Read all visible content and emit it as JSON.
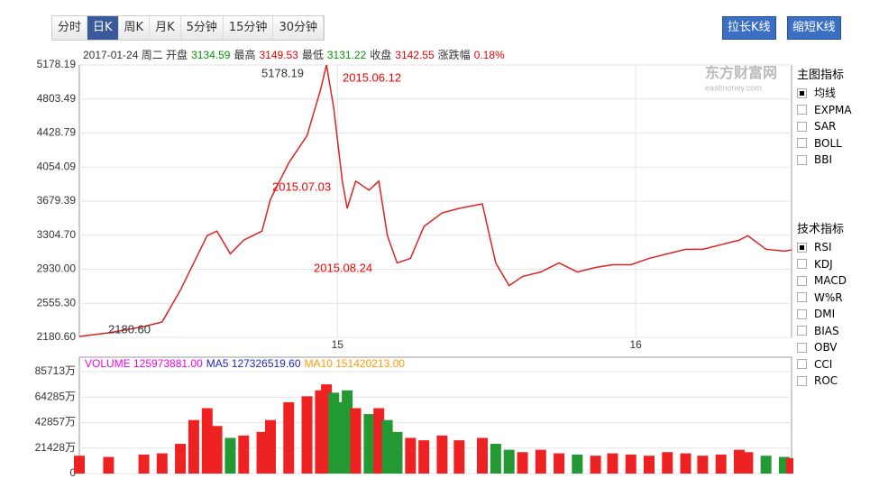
{
  "toolbar": {
    "tabs": [
      "分时",
      "日K",
      "周K",
      "月K",
      "5分钟",
      "15分钟",
      "30分钟"
    ],
    "active": 1
  },
  "buttons": [
    "拉长K线",
    "缩短K线"
  ],
  "watermark": {
    "brand": "东方财富网",
    "site": "eastmoney.com"
  },
  "info": [
    {
      "text": "2017-01-24 周二 开盘",
      "color": "#333"
    },
    {
      "text": "3134.59",
      "color": "#090"
    },
    {
      "text": "最高",
      "color": "#333"
    },
    {
      "text": "3149.53",
      "color": "#e00"
    },
    {
      "text": "最低",
      "color": "#333"
    },
    {
      "text": "3131.22",
      "color": "#090"
    },
    {
      "text": "收盘",
      "color": "#333"
    },
    {
      "text": "3142.55",
      "color": "#e00"
    },
    {
      "text": "涨跌幅",
      "color": "#333"
    },
    {
      "text": "0.18%",
      "color": "#e00"
    }
  ],
  "indicators": {
    "main": {
      "title": "主图指标",
      "items": [
        "均线",
        "EXPMA",
        "SAR",
        "BOLL",
        "BBI"
      ],
      "checked": 0
    },
    "tech": {
      "title": "技术指标",
      "items": [
        "RSI",
        "KDJ",
        "MACD",
        "W%R",
        "DMI",
        "BIAS",
        "OBV",
        "CCI",
        "ROC"
      ],
      "checked": 0
    }
  },
  "chart_data": [
    {
      "type": "line",
      "color": "#d22",
      "x": [
        0,
        24,
        53,
        68,
        83,
        94,
        105,
        113,
        124,
        135,
        150,
        157,
        172,
        187,
        198,
        203,
        209,
        216,
        220,
        227,
        238,
        246,
        253,
        261,
        272,
        283,
        298,
        312,
        331,
        342,
        353,
        364,
        379,
        394,
        409,
        424,
        438,
        453,
        468,
        483,
        498,
        512,
        527,
        542,
        549,
        564,
        579,
        585
      ],
      "values": [
        2190,
        2230,
        2300,
        2350,
        2700,
        3000,
        3300,
        3350,
        3100,
        3250,
        3350,
        3700,
        4100,
        4400,
        4900,
        5178.19,
        4700,
        3900,
        3600,
        3900,
        3800,
        3900,
        3300,
        3000,
        3050,
        3400,
        3550,
        3600,
        3650,
        3000,
        2750,
        2850,
        2900,
        3000,
        2900,
        2950,
        2980,
        2980,
        3050,
        3100,
        3150,
        3150,
        3200,
        3250,
        3300,
        3150,
        3130,
        3142.55
      ],
      "xlim": [
        0,
        585
      ],
      "xticks": [
        {
          "value": 212,
          "label": "15"
        },
        {
          "value": 457,
          "label": "16"
        }
      ],
      "ylim": [
        2180.6,
        5178.19
      ],
      "yticks": [
        {
          "value": 2180.6,
          "label": "2180.60"
        },
        {
          "value": 2555.3,
          "label": "2555.30"
        },
        {
          "value": 2930,
          "label": "2930.00"
        },
        {
          "value": 3304.7,
          "label": "3304.70"
        },
        {
          "value": 3679.39,
          "label": "3679.39"
        },
        {
          "value": 4054.09,
          "label": "4054.09"
        },
        {
          "value": 4428.79,
          "label": "4428.79"
        },
        {
          "value": 4803.49,
          "label": "4803.49"
        },
        {
          "value": 5178.19,
          "label": "5178.19"
        }
      ],
      "grid": true,
      "annotations": [
        "5178.19",
        "2015.06.12",
        "2015.07.03",
        "2015.08.24",
        "2180.60"
      ]
    },
    {
      "type": "bar",
      "x": [
        0,
        24,
        53,
        68,
        83,
        94,
        105,
        113,
        124,
        135,
        150,
        157,
        172,
        187,
        198,
        203,
        209,
        216,
        220,
        227,
        238,
        246,
        253,
        261,
        272,
        283,
        298,
        312,
        331,
        342,
        353,
        364,
        379,
        394,
        409,
        424,
        438,
        453,
        468,
        483,
        498,
        512,
        527,
        542,
        549,
        564,
        579,
        585
      ],
      "values": [
        15000,
        14000,
        16000,
        17000,
        25000,
        45000,
        55000,
        40000,
        30000,
        32000,
        35000,
        45000,
        60000,
        65000,
        70000,
        75000,
        68000,
        60000,
        70000,
        55000,
        50000,
        55000,
        45000,
        35000,
        30000,
        28000,
        32000,
        28000,
        30000,
        25000,
        20000,
        18000,
        20000,
        17000,
        16000,
        15000,
        17000,
        16000,
        15000,
        18000,
        17000,
        15000,
        16000,
        20000,
        18000,
        15000,
        14000,
        13000
      ],
      "colors": [
        "#e22",
        "#293"
      ],
      "xlim": [
        0,
        585
      ],
      "ylim": [
        0,
        85713
      ],
      "yticks": [
        0,
        {
          "value": 21428,
          "label": "21428万"
        },
        {
          "value": 42857,
          "label": "42857万"
        },
        {
          "value": 64285,
          "label": "64285万"
        },
        {
          "value": 85713,
          "label": "85713万"
        }
      ],
      "legend": [
        {
          "text": "VOLUME 125973881.00",
          "color": "#e0e"
        },
        {
          "text": "MA5 127326519.60",
          "color": "#22c"
        },
        {
          "text": "MA10 151420213.00",
          "color": "#f90"
        }
      ]
    }
  ]
}
